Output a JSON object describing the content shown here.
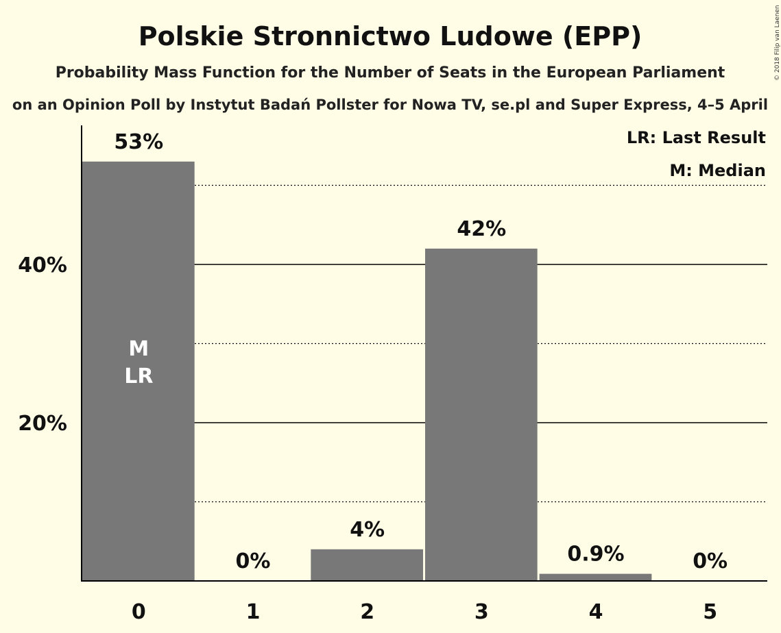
{
  "chart_data": {
    "type": "bar",
    "title": "Polskie Stronnictwo Ludowe (EPP)",
    "subtitle": "Probability Mass Function for the Number of Seats in the European Parliament",
    "subtitle2": "on an Opinion Poll by Instytut Badań Pollster for Nowa TV, se.pl and Super Express, 4–5 April",
    "categories": [
      "0",
      "1",
      "2",
      "3",
      "4",
      "5"
    ],
    "values": [
      53,
      0,
      4,
      42,
      0.9,
      0
    ],
    "data_labels": [
      "53%",
      "0%",
      "4%",
      "42%",
      "0.9%",
      "0%"
    ],
    "ylim": [
      0,
      57.5
    ],
    "yticks": [
      {
        "value": 20,
        "label": "20%"
      },
      {
        "value": 40,
        "label": "40%"
      }
    ],
    "minor_gridlines": [
      10,
      30,
      50
    ],
    "median_index": 0,
    "last_result_index": 0,
    "median_marker": "M",
    "last_result_marker": "LR",
    "legend": {
      "placement": "top-right",
      "entries": [
        "LR: Last Result",
        "M: Median"
      ]
    },
    "bar_color": "#787878",
    "background_color": "#fffde6",
    "copyright": "© 2018 Filip van Laenen"
  }
}
